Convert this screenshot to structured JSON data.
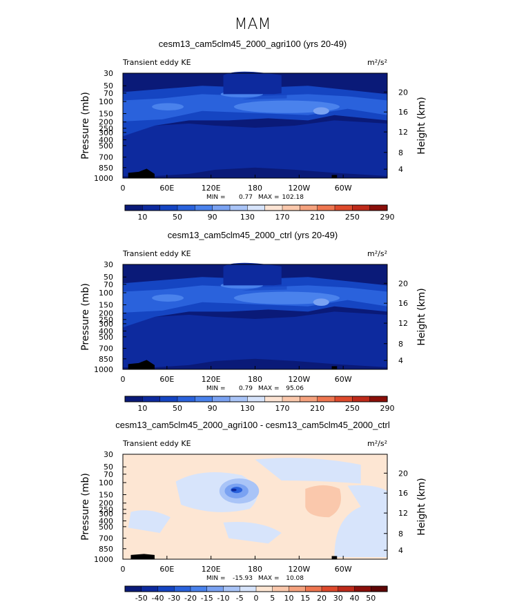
{
  "figure_title": "MAM",
  "chart_data": [
    {
      "type": "heatmap",
      "title": "cesm13_cam5clm45_2000_agri100 (yrs 20-49)",
      "variable": "Transient eddy KE",
      "units": "m²/s²",
      "xlabel": "",
      "ylabel_left": "Pressure (mb)",
      "ylabel_right": "Height (km)",
      "x_ticks": [
        "0",
        "60E",
        "120E",
        "180",
        "120W",
        "60W"
      ],
      "y_ticks_left": [
        "30",
        "50",
        "70",
        "100",
        "150",
        "200",
        "250",
        "300",
        "400",
        "500",
        "700",
        "850",
        "1000"
      ],
      "y_ticks_right": [
        "20",
        "16",
        "12",
        "8",
        "4"
      ],
      "stats": {
        "min_label": "MIN =",
        "min": "0.77",
        "max_label": "MAX =",
        "max": "102.18"
      },
      "colorbar_labels": [
        "10",
        "50",
        "90",
        "130",
        "170",
        "210",
        "250",
        "290"
      ]
    },
    {
      "type": "heatmap",
      "title": "cesm13_cam5clm45_2000_ctrl (yrs 20-49)",
      "variable": "Transient eddy KE",
      "units": "m²/s²",
      "xlabel": "",
      "ylabel_left": "Pressure (mb)",
      "ylabel_right": "Height (km)",
      "x_ticks": [
        "0",
        "60E",
        "120E",
        "180",
        "120W",
        "60W"
      ],
      "y_ticks_left": [
        "30",
        "50",
        "70",
        "100",
        "150",
        "200",
        "250",
        "300",
        "400",
        "500",
        "700",
        "850",
        "1000"
      ],
      "y_ticks_right": [
        "20",
        "16",
        "12",
        "8",
        "4"
      ],
      "stats": {
        "min_label": "MIN =",
        "min": "0.79",
        "max_label": "MAX =",
        "max": "95.06"
      },
      "colorbar_labels": [
        "10",
        "50",
        "90",
        "130",
        "170",
        "210",
        "250",
        "290"
      ]
    },
    {
      "type": "heatmap",
      "title": "cesm13_cam5clm45_2000_agri100 - cesm13_cam5clm45_2000_ctrl",
      "variable": "Transient eddy KE",
      "units": "m²/s²",
      "xlabel": "",
      "ylabel_left": "Pressure (mb)",
      "ylabel_right": "Height (km)",
      "x_ticks": [
        "0",
        "60E",
        "120E",
        "180",
        "120W",
        "60W"
      ],
      "y_ticks_left": [
        "30",
        "50",
        "70",
        "100",
        "150",
        "200",
        "250",
        "300",
        "400",
        "500",
        "700",
        "850",
        "1000"
      ],
      "y_ticks_right": [
        "20",
        "16",
        "12",
        "8",
        "4"
      ],
      "stats": {
        "min_label": "MIN =",
        "min": "-15.93",
        "max_label": "MAX =",
        "max": "10.08"
      },
      "colorbar_labels": [
        "-50",
        "-40",
        "-30",
        "-20",
        "-15",
        "-10",
        "-5",
        "0",
        "5",
        "10",
        "15",
        "20",
        "30",
        "40",
        "50"
      ]
    }
  ],
  "colors": {
    "abs_scale": [
      "#0a1a78",
      "#0d2a9e",
      "#1545c2",
      "#2a62dc",
      "#4a82ec",
      "#7aa2f2",
      "#a9c4f7",
      "#d7e4fb",
      "#fce4d4",
      "#fac8ac",
      "#f5a27e",
      "#ee7650",
      "#de4a2c",
      "#be2a1a",
      "#8a0f0a"
    ],
    "diff_scale": [
      "#0a1a78",
      "#0d2a9e",
      "#1545c2",
      "#2a62dc",
      "#4a82ec",
      "#7aa2f2",
      "#a9c4f7",
      "#d7e4fb",
      "#fde6d3",
      "#fac8ac",
      "#f5a27e",
      "#ee7650",
      "#de4a2c",
      "#be2a1a",
      "#8a0f0a",
      "#5e0606"
    ],
    "terrain": "#000000"
  }
}
